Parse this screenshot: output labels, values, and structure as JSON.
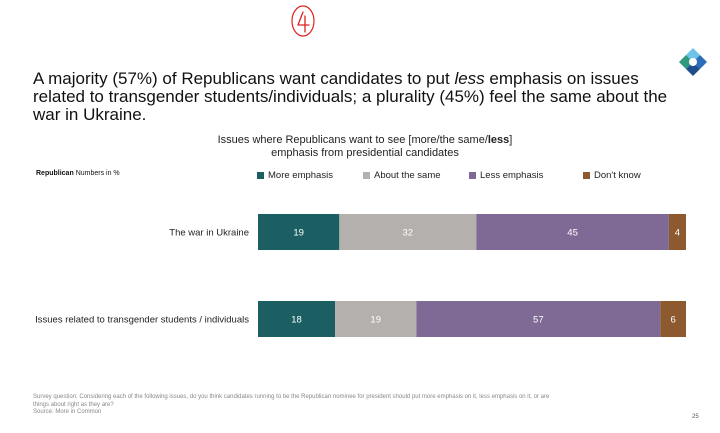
{
  "headline": {
    "part1": "A majority (57%) of Republicans want candidates to put ",
    "emph": "less",
    "part2": " emphasis on issues related to transgender students/individuals; a plurality (45%) feel the same about the war in Ukraine."
  },
  "annotation": "4",
  "subtitle": {
    "part1": "Issues where Republicans want to see [more/the same/",
    "bold": "less",
    "part2": "] emphasis from presidential candidates"
  },
  "group_label": {
    "name": "Republican",
    "note": "Numbers in %"
  },
  "footnote": {
    "question": "Survey question: Considering each of the following issues, do you think candidates running to be the Republican nominee for president should put more emphasis on it, less emphasis on it, or are things about right as they are?",
    "source": "Source: More in Common"
  },
  "page_number": "25",
  "chart_data": {
    "type": "bar",
    "orientation": "horizontal",
    "stacked": true,
    "categories": [
      "The war in Ukraine",
      "Issues related to transgender students / individuals"
    ],
    "series": [
      {
        "name": "More emphasis",
        "color": "#1b5f63",
        "values": [
          19,
          18
        ]
      },
      {
        "name": "About the same",
        "color": "#b3b0ad",
        "values": [
          32,
          19
        ]
      },
      {
        "name": "Less emphasis",
        "color": "#7e6a94",
        "values": [
          45,
          57
        ]
      },
      {
        "name": "Don't know",
        "color": "#8c5a2e",
        "values": [
          4,
          6
        ]
      }
    ],
    "xlim": [
      0,
      100
    ],
    "legend_position": "top",
    "grid": false
  }
}
